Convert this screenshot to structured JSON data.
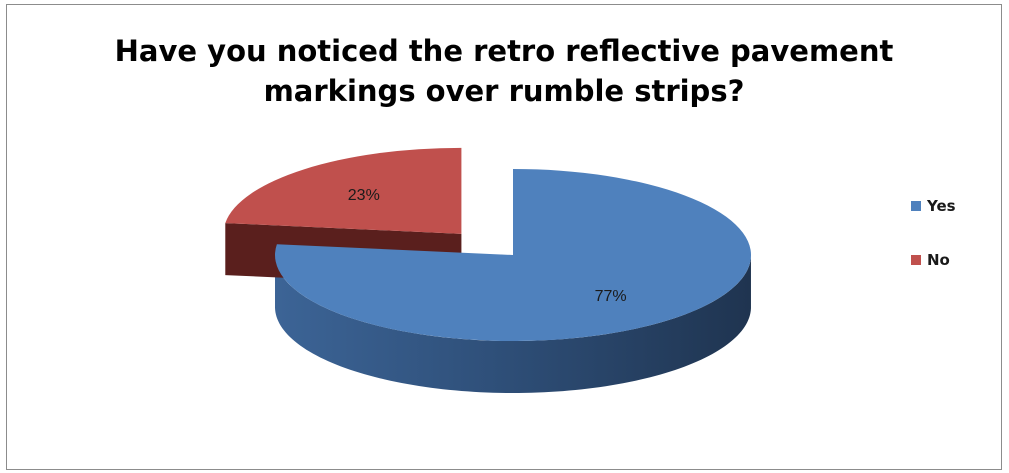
{
  "chart_data": {
    "type": "pie",
    "title_lines": [
      "Have you noticed the retro reflective pavement",
      "markings over rumble strips?"
    ],
    "slices": [
      {
        "name": "Yes",
        "value": 77,
        "label": "77%",
        "color": "#4f81bd",
        "side_color": "#2e4a6e",
        "exploded": false
      },
      {
        "name": "No",
        "value": 23,
        "label": "23%",
        "color": "#c0504d",
        "side_color": "#5a1f1d",
        "exploded": true
      }
    ],
    "legend": {
      "placement": "right",
      "entries": [
        "Yes",
        "No"
      ]
    },
    "three_d": true
  }
}
